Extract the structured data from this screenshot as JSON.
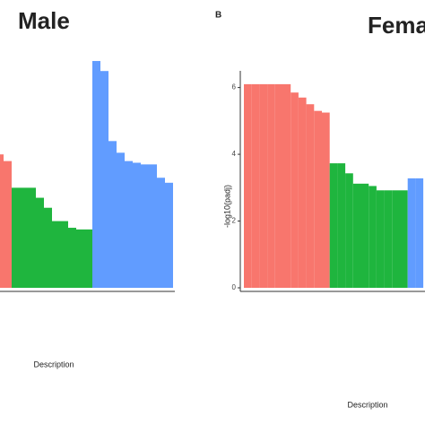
{
  "chart_data": [
    {
      "type": "bar",
      "title": "Male",
      "x_label": "Description",
      "series": [
        {
          "color": "#f8766d",
          "values": [
            4.0,
            3.8
          ]
        },
        {
          "color": "#1fb53e",
          "values": [
            3.0,
            3.0,
            3.0,
            2.7,
            2.4,
            2.0,
            2.0,
            1.8,
            1.75,
            1.75
          ]
        },
        {
          "color": "#619cff",
          "values": [
            6.8,
            6.5,
            4.4,
            4.05,
            3.8,
            3.75,
            3.7,
            3.7,
            3.3,
            3.15
          ]
        }
      ]
    },
    {
      "type": "bar",
      "panel_label": "B",
      "title": "Fema",
      "x_label": "Description",
      "y_label": "-log10(padj)",
      "ylim": [
        0,
        6.5
      ],
      "yticks": [
        0,
        2,
        4,
        6
      ],
      "series": [
        {
          "color": "#f8766d",
          "values": [
            6.1,
            6.1,
            6.1,
            6.1,
            6.1,
            6.1,
            5.85,
            5.7,
            5.5,
            5.3,
            5.25
          ]
        },
        {
          "color": "#1fb53e",
          "values": [
            3.73,
            3.73,
            3.43,
            3.12,
            3.12,
            3.05,
            2.92,
            2.92,
            2.92,
            2.92
          ]
        },
        {
          "color": "#619cff",
          "values": [
            3.28,
            3.28
          ]
        }
      ]
    }
  ]
}
